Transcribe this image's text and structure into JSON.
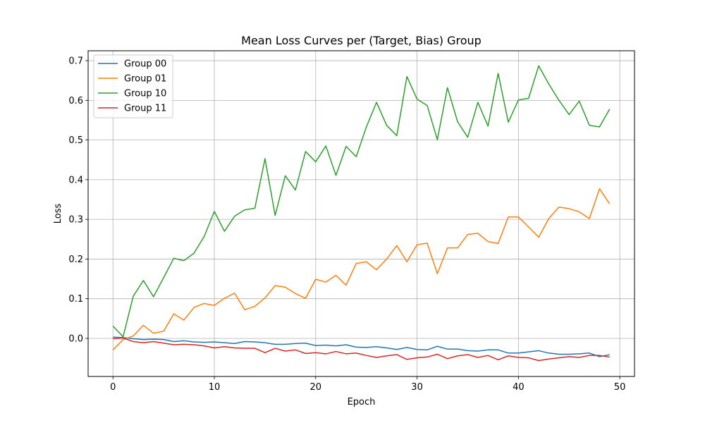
{
  "chart_data": {
    "type": "line",
    "title": "Mean Loss Curves per (Target, Bias) Group",
    "xlabel": "Epoch",
    "ylabel": "Loss",
    "xlim": [
      -2.45,
      51.45
    ],
    "ylim": [
      -0.096,
      0.725
    ],
    "xticks": [
      0,
      10,
      20,
      30,
      40,
      50
    ],
    "yticks": [
      0.0,
      0.1,
      0.2,
      0.3,
      0.4,
      0.5,
      0.6,
      0.7
    ],
    "grid": true,
    "legend": "upper-left",
    "x": [
      0,
      1,
      2,
      3,
      4,
      5,
      6,
      7,
      8,
      9,
      10,
      11,
      12,
      13,
      14,
      15,
      16,
      17,
      18,
      19,
      20,
      21,
      22,
      23,
      24,
      25,
      26,
      27,
      28,
      29,
      30,
      31,
      32,
      33,
      34,
      35,
      36,
      37,
      38,
      39,
      40,
      41,
      42,
      43,
      44,
      45,
      46,
      47,
      48,
      49
    ],
    "series": [
      {
        "name": "Group 00",
        "color": "#1f77b4",
        "values": [
          0.003,
          0.002,
          -0.001,
          -0.003,
          -0.002,
          -0.003,
          -0.008,
          -0.006,
          -0.009,
          -0.01,
          -0.009,
          -0.011,
          -0.013,
          -0.008,
          -0.009,
          -0.011,
          -0.015,
          -0.015,
          -0.013,
          -0.012,
          -0.018,
          -0.017,
          -0.019,
          -0.016,
          -0.022,
          -0.023,
          -0.021,
          -0.024,
          -0.028,
          -0.023,
          -0.028,
          -0.029,
          -0.02,
          -0.027,
          -0.027,
          -0.031,
          -0.032,
          -0.029,
          -0.029,
          -0.037,
          -0.037,
          -0.034,
          -0.031,
          -0.037,
          -0.04,
          -0.04,
          -0.039,
          -0.037,
          -0.046,
          -0.041
        ]
      },
      {
        "name": "Group 01",
        "color": "#ff7f0e",
        "values": [
          -0.029,
          -0.003,
          0.006,
          0.033,
          0.013,
          0.018,
          0.062,
          0.046,
          0.078,
          0.088,
          0.083,
          0.101,
          0.114,
          0.072,
          0.081,
          0.102,
          0.133,
          0.129,
          0.113,
          0.101,
          0.149,
          0.142,
          0.159,
          0.134,
          0.189,
          0.193,
          0.173,
          0.2,
          0.234,
          0.193,
          0.236,
          0.24,
          0.163,
          0.228,
          0.228,
          0.262,
          0.265,
          0.244,
          0.239,
          0.306,
          0.306,
          0.281,
          0.255,
          0.302,
          0.331,
          0.327,
          0.319,
          0.302,
          0.377,
          0.339
        ]
      },
      {
        "name": "Group 10",
        "color": "#2ca02c",
        "values": [
          0.031,
          0.004,
          0.106,
          0.146,
          0.105,
          0.153,
          0.202,
          0.196,
          0.215,
          0.257,
          0.32,
          0.27,
          0.308,
          0.324,
          0.328,
          0.453,
          0.31,
          0.41,
          0.374,
          0.471,
          0.445,
          0.485,
          0.411,
          0.484,
          0.458,
          0.533,
          0.595,
          0.537,
          0.511,
          0.66,
          0.603,
          0.587,
          0.501,
          0.632,
          0.546,
          0.507,
          0.595,
          0.535,
          0.668,
          0.545,
          0.601,
          0.605,
          0.687,
          0.641,
          0.6,
          0.564,
          0.598,
          0.537,
          0.533,
          0.578
        ]
      },
      {
        "name": "Group 11",
        "color": "#d62728",
        "values": [
          -0.001,
          0.001,
          -0.008,
          -0.011,
          -0.008,
          -0.012,
          -0.016,
          -0.015,
          -0.016,
          -0.019,
          -0.024,
          -0.021,
          -0.024,
          -0.025,
          -0.025,
          -0.036,
          -0.025,
          -0.032,
          -0.029,
          -0.038,
          -0.036,
          -0.039,
          -0.033,
          -0.039,
          -0.037,
          -0.043,
          -0.048,
          -0.044,
          -0.041,
          -0.053,
          -0.049,
          -0.047,
          -0.04,
          -0.051,
          -0.044,
          -0.041,
          -0.048,
          -0.043,
          -0.054,
          -0.044,
          -0.048,
          -0.049,
          -0.056,
          -0.052,
          -0.049,
          -0.046,
          -0.048,
          -0.043,
          -0.043,
          -0.047
        ]
      }
    ]
  }
}
